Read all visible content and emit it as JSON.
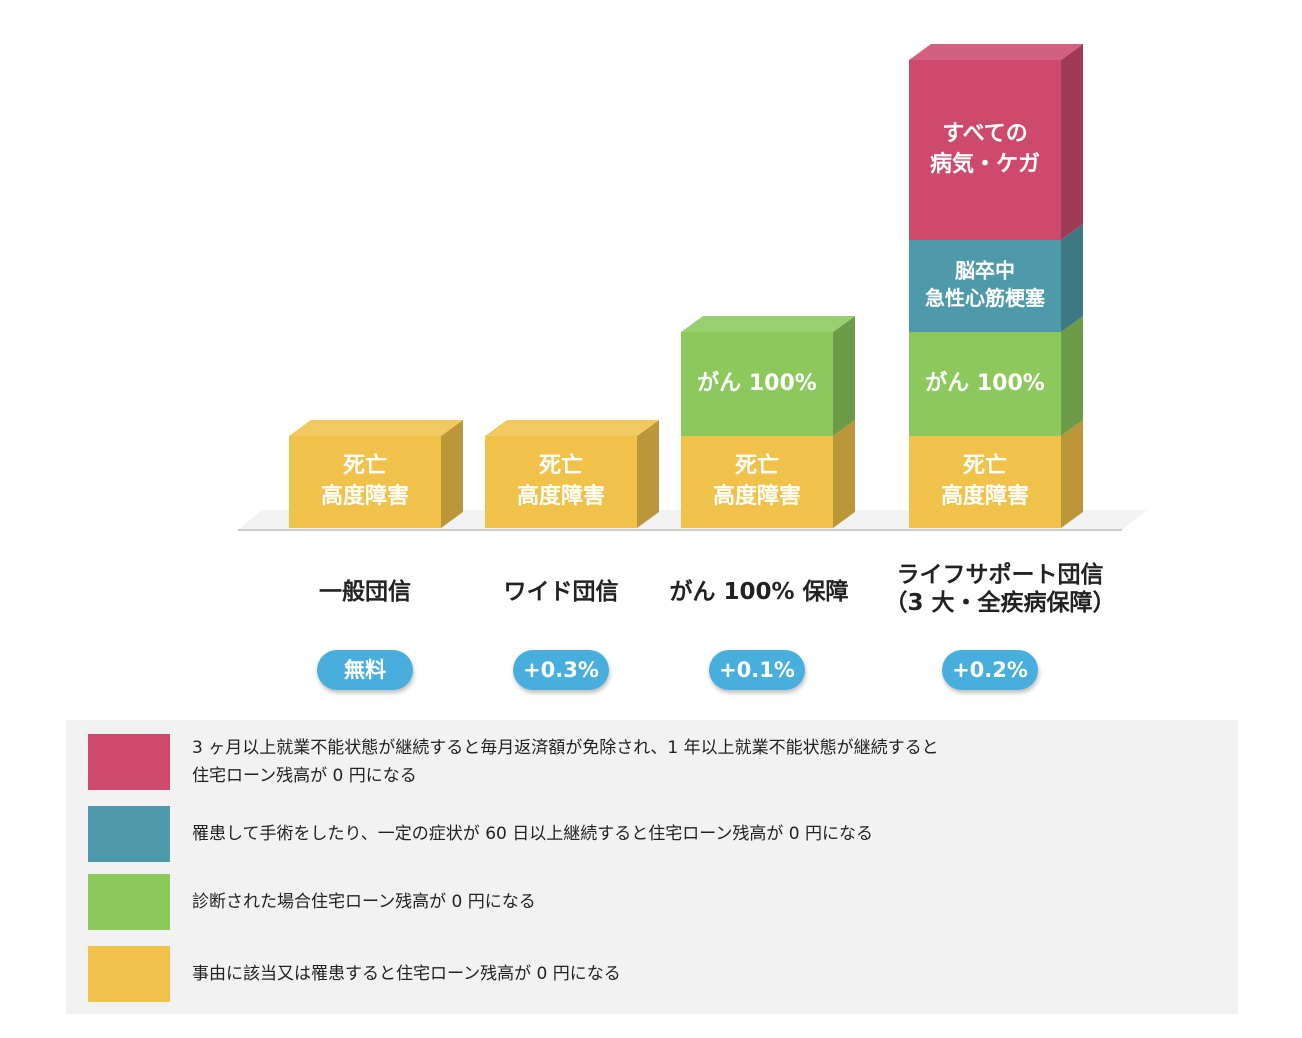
{
  "chart_data": {
    "type": "bar",
    "stacked": true,
    "categories": [
      {
        "id": "general",
        "name_lines": [
          "一般団信"
        ],
        "rate": "無料"
      },
      {
        "id": "wide",
        "name_lines": [
          "ワイド団信"
        ],
        "rate": "+0.3%"
      },
      {
        "id": "cancer",
        "name_lines": [
          "がん 100% 保障"
        ],
        "rate": "+0.1%"
      },
      {
        "id": "lifesupport",
        "name_lines": [
          "ライフサポート団信",
          "（3 大・全疾病保障）"
        ],
        "rate": "+0.2%"
      }
    ],
    "series": [
      {
        "id": "death",
        "label_lines": [
          "死亡",
          "高度障害"
        ],
        "values": [
          1,
          1,
          1,
          1
        ]
      },
      {
        "id": "cancer100",
        "label_lines": [
          "がん 100%"
        ],
        "values": [
          0,
          0,
          1,
          1
        ]
      },
      {
        "id": "stroke",
        "label_lines": [
          "脳卒中",
          "急性心筋梗塞"
        ],
        "values": [
          0,
          0,
          0,
          1
        ]
      },
      {
        "id": "all_illness",
        "label_lines": [
          "すべての",
          "病気・ケガ"
        ],
        "values": [
          0,
          0,
          0,
          1
        ]
      }
    ],
    "colors": {
      "death": "#f0c24a",
      "cancer100": "#8cc85c",
      "stroke": "#4e9aab",
      "all_illness": "#cd4a6d",
      "badge": "#47aede",
      "legend_bg": "#f2f2f2",
      "base": "#f3f3f3"
    }
  },
  "legend": [
    {
      "id": "all_illness",
      "lines": [
        "3 ヶ月以上就業不能状態が継続すると毎月返済額が免除され、1 年以上就業不能状態が継続すると",
        "住宅ローン残高が 0 円になる"
      ]
    },
    {
      "id": "stroke",
      "lines": [
        "罹患して手術をしたり、一定の症状が 60 日以上継続すると住宅ローン残高が 0 円になる"
      ]
    },
    {
      "id": "cancer100",
      "lines": [
        "診断された場合住宅ローン残高が 0 円になる"
      ]
    },
    {
      "id": "death",
      "lines": [
        "事由に該当又は罹患すると住宅ローン残高が 0 円になる"
      ]
    }
  ]
}
